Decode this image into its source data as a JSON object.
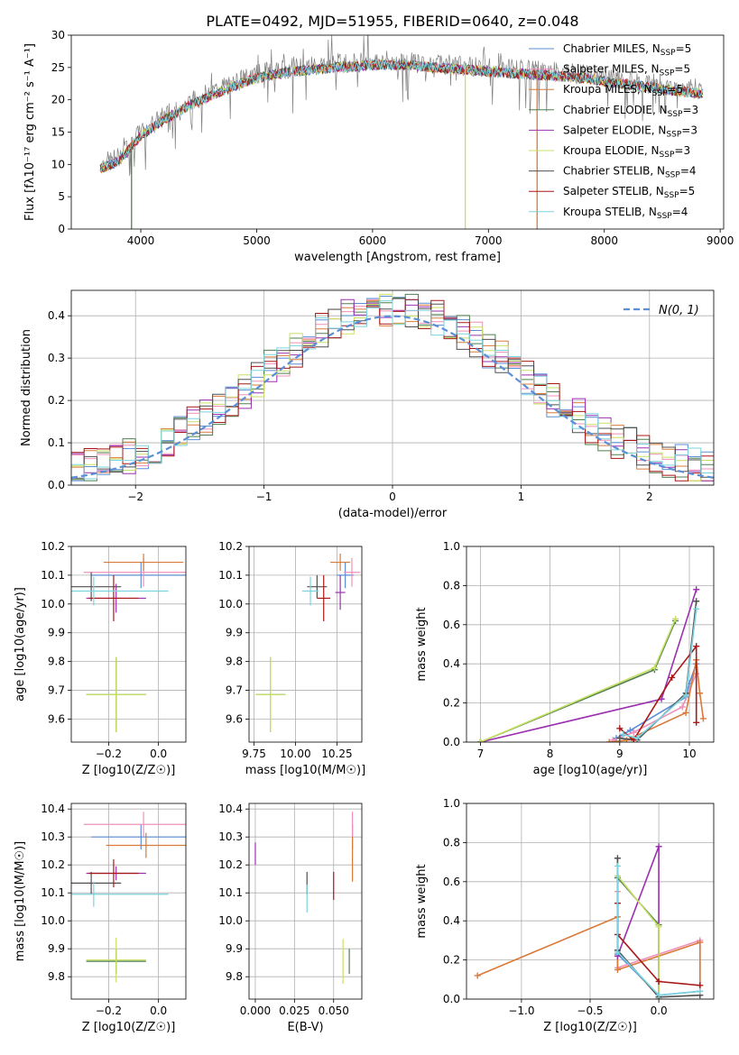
{
  "figure_title": "PLATE=0492, MJD=51955, FIBERID=0640, z=0.048",
  "models": [
    {
      "label": "Chabrier MILES, N",
      "n": "5",
      "color": "#5b8fd6"
    },
    {
      "label": "Salpeter MILES, N",
      "n": "5",
      "color": "#f08fb8"
    },
    {
      "label": "Kroupa MILES, N",
      "n": "5",
      "color": "#d97a3a"
    },
    {
      "label": "Chabrier ELODIE, N",
      "n": "3",
      "color": "#4f7f4f"
    },
    {
      "label": "Salpeter ELODIE, N",
      "n": "3",
      "color": "#9b30b0"
    },
    {
      "label": "Kroupa ELODIE, N",
      "n": "3",
      "color": "#c8e063"
    },
    {
      "label": "Chabrier STELIB, N",
      "n": "4",
      "color": "#505050"
    },
    {
      "label": "Salpeter STELIB, N",
      "n": "5",
      "color": "#a81818"
    },
    {
      "label": "Kroupa STELIB, N",
      "n": "4",
      "color": "#7ad3de"
    }
  ],
  "legend_subscript": "SSP",
  "legend_normal": "N(0, 1)",
  "chart_data": [
    {
      "id": "spectrum",
      "type": "line",
      "title": "PLATE=0492, MJD=51955, FIBERID=0640, z=0.048",
      "xlabel": "wavelength [Angstrom, rest frame]",
      "ylabel": "Flux [fλ10⁻¹⁷ erg cm⁻² s⁻¹ A⁻¹]",
      "xlim": [
        3400,
        9030
      ],
      "ylim": [
        0,
        30
      ],
      "xticks": [
        4000,
        5000,
        6000,
        7000,
        8000,
        9000
      ],
      "yticks": [
        0,
        5,
        10,
        15,
        20,
        25,
        30
      ],
      "grid": false,
      "legend": "upper-right",
      "continuum": {
        "x": [
          3650,
          3800,
          4000,
          4200,
          4400,
          4700,
          5000,
          5300,
          5600,
          6000,
          6300,
          6600,
          7000,
          7400,
          7800,
          8200,
          8600,
          8850
        ],
        "y": [
          10,
          11,
          15,
          17.5,
          19.5,
          22,
          24,
          25,
          25.5,
          26,
          26,
          25.5,
          25,
          24.5,
          24,
          23,
          22,
          21.5
        ]
      },
      "dropouts": [
        {
          "x": 3920,
          "y": 0
        },
        {
          "x": 6800,
          "y": 0
        },
        {
          "x": 7420,
          "y": 0
        }
      ]
    },
    {
      "id": "residuals",
      "type": "line",
      "xlabel": "(data-model)/error",
      "ylabel": "Normed distribution",
      "xlim": [
        -2.5,
        2.5
      ],
      "ylim": [
        0,
        0.46
      ],
      "xticks": [
        -2,
        -1,
        0,
        1,
        2
      ],
      "yticks": [
        0.0,
        0.1,
        0.2,
        0.3,
        0.4
      ],
      "grid": true,
      "legend": "upper-right",
      "normal": {
        "mean": 0,
        "sigma": 1
      }
    },
    {
      "id": "age_vs_Z",
      "type": "scatter",
      "xlabel": "Z [log10(Z/Z☉)]",
      "ylabel": "age  [log10(age/yr)]",
      "xlim": [
        -0.35,
        0.11
      ],
      "ylim": [
        9.52,
        10.2
      ],
      "xticks": [
        -0.2,
        0.0
      ],
      "yticks": [
        9.6,
        9.7,
        9.8,
        9.9,
        10.0,
        10.1,
        10.2
      ],
      "grid": true,
      "points": [
        {
          "x": -0.07,
          "y": 10.1,
          "xerr": 0.2,
          "yerr": 0.045
        },
        {
          "x": -0.06,
          "y": 10.11,
          "xerr": 0.24,
          "yerr": 0.05
        },
        {
          "x": -0.06,
          "y": 10.145,
          "xerr": 0.16,
          "yerr": 0.03
        },
        {
          "x": -0.17,
          "y": 9.685,
          "xerr": 0.12,
          "yerr": 0.13
        },
        {
          "x": -0.17,
          "y": 10.02,
          "xerr": 0.12,
          "yerr": 0.05
        },
        {
          "x": -0.17,
          "y": 9.685,
          "xerr": 0.12,
          "yerr": 0.13
        },
        {
          "x": -0.27,
          "y": 10.06,
          "xerr": 0.12,
          "yerr": 0.05
        },
        {
          "x": -0.18,
          "y": 10.02,
          "xerr": 0.1,
          "yerr": 0.08
        },
        {
          "x": -0.26,
          "y": 10.045,
          "xerr": 0.3,
          "yerr": 0.05
        }
      ]
    },
    {
      "id": "age_vs_mass",
      "type": "scatter",
      "xlabel": "mass [log10(M/M☉)]",
      "ylabel": "",
      "xlim": [
        9.72,
        10.4
      ],
      "ylim": [
        9.52,
        10.2
      ],
      "xticks": [
        9.75,
        10.0,
        10.25
      ],
      "yticks": [
        9.6,
        9.7,
        9.8,
        9.9,
        10.0,
        10.1,
        10.2
      ],
      "grid": true,
      "points": [
        {
          "x": 10.3,
          "y": 10.1,
          "xerr": 0.05,
          "yerr": 0.045
        },
        {
          "x": 10.34,
          "y": 10.11,
          "xerr": 0.05,
          "yerr": 0.05
        },
        {
          "x": 10.27,
          "y": 10.145,
          "xerr": 0.06,
          "yerr": 0.03
        },
        {
          "x": 9.85,
          "y": 9.685,
          "xerr": 0.09,
          "yerr": 0.13
        },
        {
          "x": 10.27,
          "y": 10.04,
          "xerr": 0.03,
          "yerr": 0.06
        },
        {
          "x": 9.85,
          "y": 9.685,
          "xerr": 0.09,
          "yerr": 0.13
        },
        {
          "x": 10.13,
          "y": 10.06,
          "xerr": 0.06,
          "yerr": 0.04
        },
        {
          "x": 10.17,
          "y": 10.02,
          "xerr": 0.04,
          "yerr": 0.08
        },
        {
          "x": 10.09,
          "y": 10.045,
          "xerr": 0.05,
          "yerr": 0.05
        }
      ]
    },
    {
      "id": "weight_vs_age",
      "type": "line",
      "xlabel": "age  [log10(age/yr)]",
      "ylabel": "mass weight",
      "xlim": [
        6.8,
        10.35
      ],
      "ylim": [
        0,
        1.0
      ],
      "xticks": [
        7,
        8,
        9,
        10
      ],
      "yticks": [
        0.0,
        0.2,
        0.4,
        0.6,
        0.8,
        1.0
      ],
      "grid": true,
      "series": [
        {
          "x": [
            8.95,
            9.15,
            9.95,
            10.0,
            10.1
          ],
          "y": [
            0.02,
            0.06,
            0.23,
            0.3,
            0.4
          ]
        },
        {
          "x": [
            8.9,
            9.2,
            9.9,
            10.1,
            10.1
          ],
          "y": [
            0.01,
            0.05,
            0.18,
            0.35,
            0.42
          ]
        },
        {
          "x": [
            8.85,
            9.1,
            9.95,
            10.1,
            10.15,
            10.2
          ],
          "y": [
            0.0,
            0.01,
            0.15,
            0.42,
            0.25,
            0.12
          ]
        },
        {
          "x": [
            7.0,
            9.5,
            9.8
          ],
          "y": [
            0.0,
            0.37,
            0.62
          ]
        },
        {
          "x": [
            7.0,
            9.6,
            10.1
          ],
          "y": [
            0.0,
            0.22,
            0.78
          ]
        },
        {
          "x": [
            7.0,
            9.5,
            9.8
          ],
          "y": [
            0.0,
            0.38,
            0.63
          ]
        },
        {
          "x": [
            9.0,
            9.25,
            9.95,
            10.1
          ],
          "y": [
            0.02,
            0.01,
            0.25,
            0.72
          ]
        },
        {
          "x": [
            9.0,
            9.2,
            9.75,
            10.1,
            10.1
          ],
          "y": [
            0.07,
            0.01,
            0.33,
            0.49,
            0.1
          ]
        },
        {
          "x": [
            9.05,
            9.25,
            9.95,
            10.1
          ],
          "y": [
            0.04,
            0.02,
            0.24,
            0.68
          ]
        }
      ]
    },
    {
      "id": "mass_vs_Z",
      "type": "scatter",
      "xlabel": "Z [log10(Z/Z☉)]",
      "ylabel": "mass [log10(M/M☉)]",
      "xlim": [
        -0.35,
        0.11
      ],
      "ylim": [
        9.72,
        10.42
      ],
      "xticks": [
        -0.2,
        0.0
      ],
      "yticks": [
        9.8,
        9.9,
        10.0,
        10.1,
        10.2,
        10.3,
        10.4
      ],
      "grid": true,
      "points": [
        {
          "x": -0.07,
          "y": 10.3,
          "xerr": 0.2,
          "yerr": 0.045
        },
        {
          "x": -0.06,
          "y": 10.345,
          "xerr": 0.24,
          "yerr": 0.045
        },
        {
          "x": -0.05,
          "y": 10.27,
          "xerr": 0.16,
          "yerr": 0.045
        },
        {
          "x": -0.17,
          "y": 9.855,
          "xerr": 0.12,
          "yerr": 0.045
        },
        {
          "x": -0.17,
          "y": 10.17,
          "xerr": 0.12,
          "yerr": 0.025
        },
        {
          "x": -0.17,
          "y": 9.86,
          "xerr": 0.12,
          "yerr": 0.08
        },
        {
          "x": -0.27,
          "y": 10.135,
          "xerr": 0.12,
          "yerr": 0.04
        },
        {
          "x": -0.18,
          "y": 10.17,
          "xerr": 0.1,
          "yerr": 0.05
        },
        {
          "x": -0.26,
          "y": 10.095,
          "xerr": 0.3,
          "yerr": 0.045
        }
      ]
    },
    {
      "id": "mass_vs_ebv",
      "type": "scatter",
      "xlabel": "E(B-V)",
      "ylabel": "",
      "xlim": [
        -0.004,
        0.068
      ],
      "ylim": [
        9.72,
        10.42
      ],
      "xticks": [
        0.0,
        0.025,
        0.05
      ],
      "yticks": [
        9.8,
        9.9,
        10.0,
        10.1,
        10.2,
        10.3,
        10.4
      ],
      "grid": true,
      "points": [
        {
          "x": 0.062,
          "y": 10.3,
          "xerr": 0,
          "yerr": 0.045
        },
        {
          "x": 0.062,
          "y": 10.345,
          "xerr": 0,
          "yerr": 0.045
        },
        {
          "x": 0.062,
          "y": 10.22,
          "xerr": 0,
          "yerr": 0.08
        },
        {
          "x": 0.06,
          "y": 9.855,
          "xerr": 0,
          "yerr": 0.045
        },
        {
          "x": 0.0,
          "y": 10.24,
          "xerr": 0,
          "yerr": 0.04
        },
        {
          "x": 0.056,
          "y": 9.855,
          "xerr": 0,
          "yerr": 0.08
        },
        {
          "x": 0.033,
          "y": 10.135,
          "xerr": 0,
          "yerr": 0.04
        },
        {
          "x": 0.05,
          "y": 10.125,
          "xerr": 0,
          "yerr": 0.05
        },
        {
          "x": 0.033,
          "y": 10.08,
          "xerr": 0,
          "yerr": 0.05
        }
      ]
    },
    {
      "id": "weight_vs_Z",
      "type": "line",
      "xlabel": "Z [log10(Z/Z☉)]",
      "ylabel": "mass weight",
      "xlim": [
        -1.4,
        0.4
      ],
      "ylim": [
        0,
        1.0
      ],
      "xticks": [
        -1.0,
        -0.5,
        0.0
      ],
      "yticks": [
        0.0,
        0.2,
        0.4,
        0.6,
        0.8,
        1.0
      ],
      "grid": true,
      "series": [
        {
          "x": [
            -0.3,
            -0.3,
            0.0,
            0.3
          ],
          "y": [
            0.62,
            0.23,
            0.02,
            0.04
          ]
        },
        {
          "x": [
            -0.3,
            -0.3,
            0.3,
            0.3
          ],
          "y": [
            0.55,
            0.16,
            0.3,
            0.02
          ]
        },
        {
          "x": [
            -1.32,
            -0.3,
            -0.3,
            0.3,
            0.3
          ],
          "y": [
            0.12,
            0.42,
            0.15,
            0.29,
            0.02
          ]
        },
        {
          "x": [
            -0.3,
            0.0,
            0.0
          ],
          "y": [
            0.62,
            0.38,
            0.01
          ]
        },
        {
          "x": [
            -0.3,
            0.0,
            0.0
          ],
          "y": [
            0.22,
            0.78,
            0.0
          ]
        },
        {
          "x": [
            -0.3,
            0.0,
            0.0
          ],
          "y": [
            0.63,
            0.37,
            0.0
          ]
        },
        {
          "x": [
            -0.3,
            -0.3,
            0.0,
            0.3
          ],
          "y": [
            0.72,
            0.25,
            0.01,
            0.02
          ]
        },
        {
          "x": [
            -0.3,
            -0.3,
            0.0,
            0.3
          ],
          "y": [
            0.49,
            0.33,
            0.09,
            0.07
          ]
        },
        {
          "x": [
            -0.3,
            -0.3,
            0.0,
            0.3
          ],
          "y": [
            0.68,
            0.24,
            0.02,
            0.04
          ]
        }
      ]
    }
  ]
}
